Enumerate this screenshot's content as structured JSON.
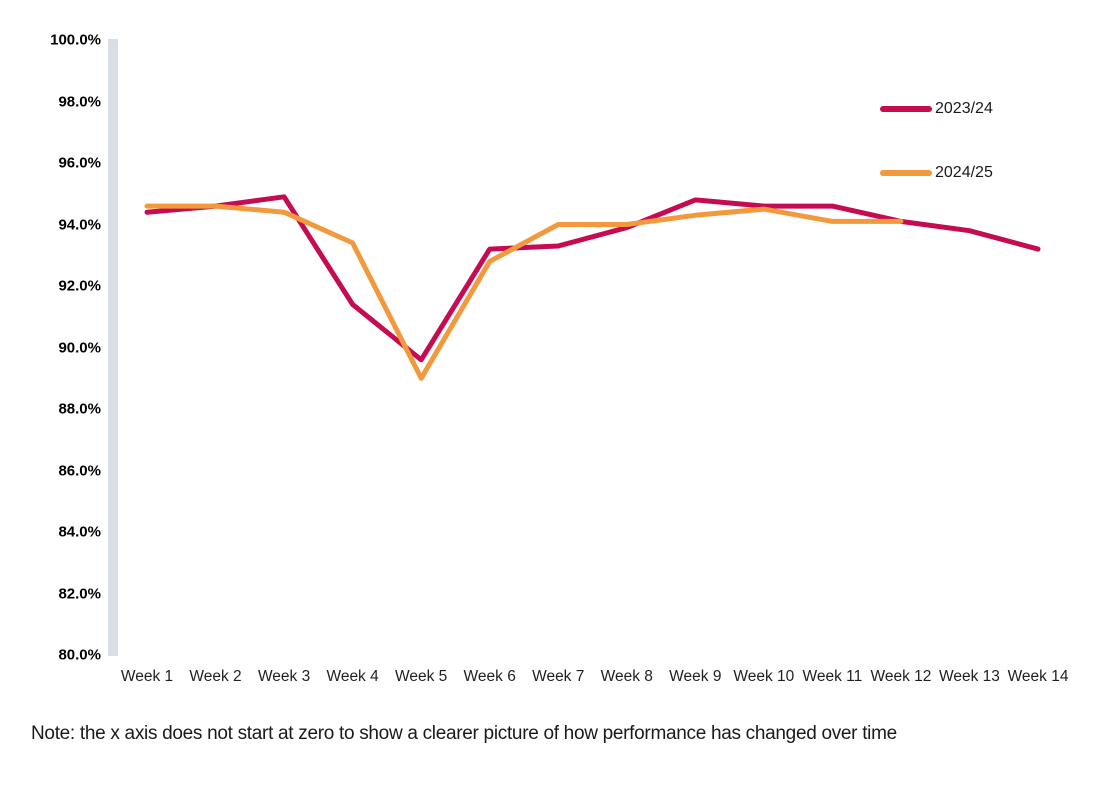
{
  "chart_data": {
    "type": "line",
    "title": "",
    "xlabel": "",
    "ylabel": "",
    "categories": [
      "Week 1",
      "Week 2",
      "Week 3",
      "Week 4",
      "Week 5",
      "Week 6",
      "Week 7",
      "Week 8",
      "Week 9",
      "Week 10",
      "Week 11",
      "Week 12",
      "Week 13",
      "Week 14"
    ],
    "series": [
      {
        "name": "2023/24",
        "color": "#C50B52",
        "values": [
          94.4,
          94.6,
          94.9,
          91.4,
          89.6,
          93.2,
          93.3,
          93.9,
          94.8,
          94.6,
          94.6,
          94.1,
          93.8,
          93.2
        ]
      },
      {
        "name": "2024/25",
        "color": "#F2993D",
        "values": [
          94.6,
          94.6,
          94.4,
          93.4,
          89.0,
          92.8,
          94.0,
          94.0,
          94.3,
          94.5,
          94.1,
          94.1
        ]
      }
    ],
    "ylim": [
      80,
      100
    ],
    "y_tick_labels": [
      "100.0%",
      "98.0%",
      "96.0%",
      "94.0%",
      "92.0%",
      "90.0%",
      "88.0%",
      "86.0%",
      "84.0%",
      "82.0%",
      "80.0%"
    ],
    "grid": false,
    "legend_position": "right-top",
    "axis_bar_color": "#D9DEE5"
  },
  "note": "Note: the x axis does not start at zero to show a clearer picture of how performance has changed over time"
}
